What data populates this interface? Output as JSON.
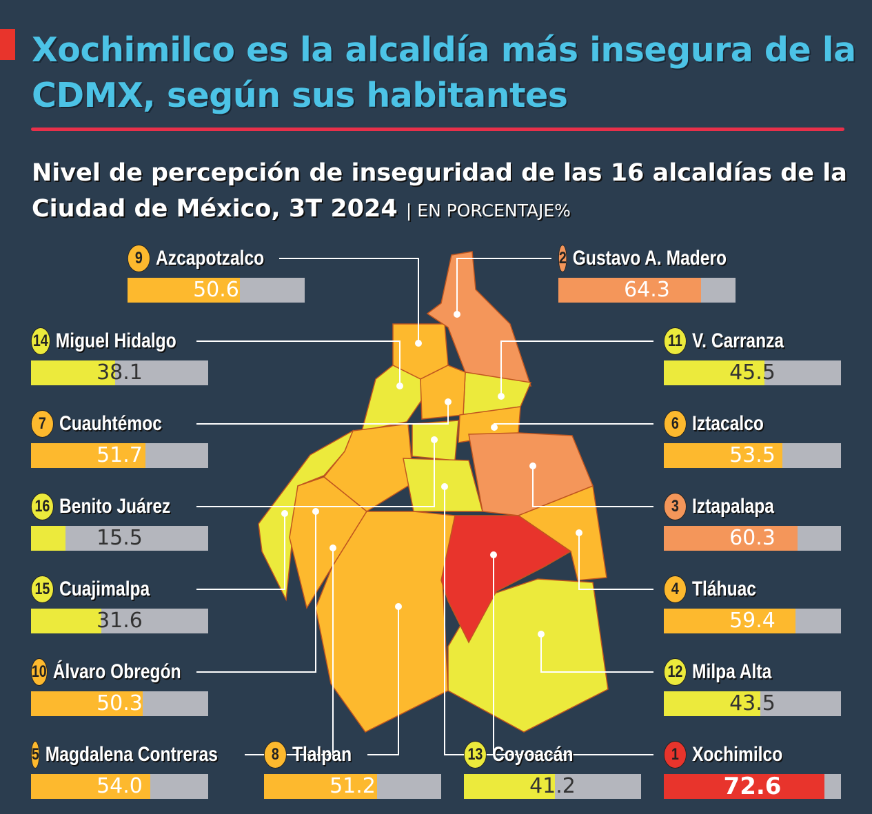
{
  "title": "Xochimilco es la alcaldía más insegura de la CDMX, según sus habitantes",
  "subtitle": "Nivel de percepción de inseguridad de las 16 alcaldías de la Ciudad de México, 3T 2024",
  "unit": "| EN PORCENTAJE%",
  "colors": {
    "background": "#2b3d4f",
    "title": "#4cc3e6",
    "rule": "#e8304a",
    "bar_remainder": "#b4b6bd"
  },
  "chart_data": {
    "type": "bar",
    "title": "Nivel de percepción de inseguridad de las 16 alcaldías de la Ciudad de México, 3T 2024",
    "unit": "porcentaje",
    "ylim": [
      0,
      80
    ],
    "items": [
      {
        "rank": "9",
        "name": "Azcapotzalco",
        "value": 50.6,
        "color": "#fdb92e"
      },
      {
        "rank": "2",
        "name": "Gustavo A. Madero",
        "value": 64.3,
        "color": "#f4965a"
      },
      {
        "rank": "14",
        "name": "Miguel Hidalgo",
        "value": 38.1,
        "color": "#ecea3c"
      },
      {
        "rank": "11",
        "name": "V. Carranza",
        "value": 45.5,
        "color": "#ecea3c"
      },
      {
        "rank": "7",
        "name": "Cuauhtémoc",
        "value": 51.7,
        "color": "#fdb92e"
      },
      {
        "rank": "6",
        "name": "Iztacalco",
        "value": 53.5,
        "color": "#fdb92e"
      },
      {
        "rank": "16",
        "name": "Benito Juárez",
        "value": 15.5,
        "color": "#ecea3c"
      },
      {
        "rank": "3",
        "name": "Iztapalapa",
        "value": 60.3,
        "color": "#f4965a"
      },
      {
        "rank": "15",
        "name": "Cuajimalpa",
        "value": 31.6,
        "color": "#ecea3c"
      },
      {
        "rank": "4",
        "name": "Tláhuac",
        "value": 59.4,
        "color": "#fdb92e"
      },
      {
        "rank": "10",
        "name": "Álvaro Obregón",
        "value": 50.3,
        "color": "#fdb92e"
      },
      {
        "rank": "12",
        "name": "Milpa Alta",
        "value": 43.5,
        "color": "#ecea3c"
      },
      {
        "rank": "5",
        "name": "Magdalena Contreras",
        "value": 54.0,
        "color": "#fdb92e"
      },
      {
        "rank": "8",
        "name": "Tlalpan",
        "value": 51.2,
        "color": "#fdb92e"
      },
      {
        "rank": "13",
        "name": "Coyoacán",
        "value": 41.2,
        "color": "#ecea3c"
      },
      {
        "rank": "1",
        "name": "Xochimilco",
        "value": 72.6,
        "color": "#e8342c"
      }
    ]
  }
}
